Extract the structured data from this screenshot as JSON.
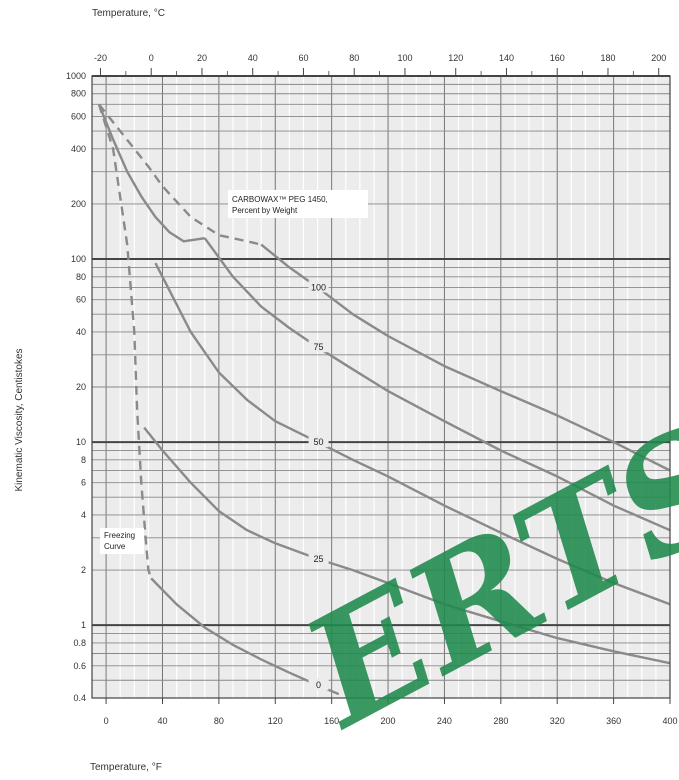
{
  "chart_data": {
    "type": "line",
    "top_axis_title": "Temperature, °C",
    "bottom_axis_title": "Temperature, °F",
    "ylabel": "Kinematic Viscosity, Centistokes",
    "y_scale": "log",
    "ylim": [
      0.4,
      1000
    ],
    "xlim_F": [
      -10,
      400
    ],
    "top_ticks_C": [
      -20,
      0,
      20,
      40,
      60,
      80,
      100,
      120,
      140,
      160,
      180,
      200
    ],
    "bottom_ticks_F": [
      0,
      40,
      80,
      120,
      160,
      200,
      240,
      280,
      320,
      360,
      400
    ],
    "y_ticks": [
      {
        "value": 1000,
        "label": "1000"
      },
      {
        "value": 800,
        "label": "800"
      },
      {
        "value": 600,
        "label": "600"
      },
      {
        "value": 400,
        "label": "400"
      },
      {
        "value": 200,
        "label": "200"
      },
      {
        "value": 100,
        "label": "100"
      },
      {
        "value": 80,
        "label": "80"
      },
      {
        "value": 60,
        "label": "60"
      },
      {
        "value": 40,
        "label": "40"
      },
      {
        "value": 20,
        "label": "20"
      },
      {
        "value": 10,
        "label": "10"
      },
      {
        "value": 8,
        "label": "8"
      },
      {
        "value": 6,
        "label": "6"
      },
      {
        "value": 4,
        "label": "4"
      },
      {
        "value": 2,
        "label": "2"
      },
      {
        "value": 1,
        "label": "1"
      },
      {
        "value": 0.8,
        "label": "0.8"
      },
      {
        "value": 0.6,
        "label": "0.6"
      },
      {
        "value": 0.4,
        "label": "0.4"
      }
    ],
    "grid": true,
    "annotation": {
      "line1": "CARBOWAX™ PEG 1450,",
      "line2": "Percent by Weight"
    },
    "freezing_label": {
      "line1": "Freezing",
      "line2": "Curve"
    },
    "series": [
      {
        "name": "100",
        "style": "solid",
        "label_at_F": 150,
        "x": [
          110,
          130,
          150,
          175,
          200,
          240,
          280,
          320,
          360,
          400
        ],
        "y": [
          120,
          90,
          70,
          50,
          38,
          26,
          19,
          14,
          10,
          7
        ]
      },
      {
        "name": "75",
        "style": "solid",
        "label_at_F": 150,
        "x": [
          70,
          90,
          110,
          130,
          150,
          175,
          200,
          240,
          280,
          320,
          360,
          400
        ],
        "y": [
          130,
          80,
          55,
          42,
          33,
          25,
          19,
          13,
          9,
          6.5,
          4.5,
          3.3
        ]
      },
      {
        "name": "50",
        "style": "solid",
        "label_at_F": 150,
        "x": [
          35,
          40,
          60,
          80,
          100,
          120,
          150,
          175,
          200,
          240,
          280,
          320,
          360,
          400
        ],
        "y": [
          95,
          80,
          40,
          24,
          17,
          13,
          10,
          8,
          6.5,
          4.5,
          3.2,
          2.3,
          1.7,
          1.3
        ]
      },
      {
        "name": "25",
        "style": "solid",
        "label_at_F": 150,
        "x": [
          27,
          40,
          60,
          80,
          100,
          120,
          150,
          175,
          200,
          240,
          280,
          320,
          360,
          400
        ],
        "y": [
          12,
          9,
          6,
          4.2,
          3.3,
          2.8,
          2.3,
          2,
          1.7,
          1.3,
          1.05,
          0.85,
          0.72,
          0.62
        ]
      },
      {
        "name": "0",
        "style": "solid",
        "label_at_F": 150,
        "x": [
          32,
          50,
          70,
          90,
          110,
          130,
          150,
          165
        ],
        "y": [
          1.8,
          1.3,
          0.97,
          0.78,
          0.65,
          0.55,
          0.47,
          0.42
        ]
      },
      {
        "name": "freezing-curve",
        "style": "dashed",
        "x": [
          -5,
          10,
          20,
          30,
          40,
          60,
          80,
          100,
          110
        ],
        "y": [
          700,
          500,
          400,
          320,
          250,
          170,
          135,
          125,
          120
        ]
      },
      {
        "name": "freezing-curve-low",
        "style": "dashed",
        "x": [
          -5,
          5,
          15,
          20,
          22,
          25,
          28,
          30,
          32
        ],
        "y": [
          700,
          400,
          120,
          40,
          15,
          6,
          3,
          2,
          1.8
        ]
      },
      {
        "name": "left-boundary",
        "style": "solid",
        "x": [
          -5,
          5,
          15,
          25,
          35,
          45,
          55,
          70
        ],
        "y": [
          700,
          450,
          300,
          220,
          170,
          140,
          125,
          130
        ]
      }
    ]
  },
  "watermark": "ERTS.C"
}
